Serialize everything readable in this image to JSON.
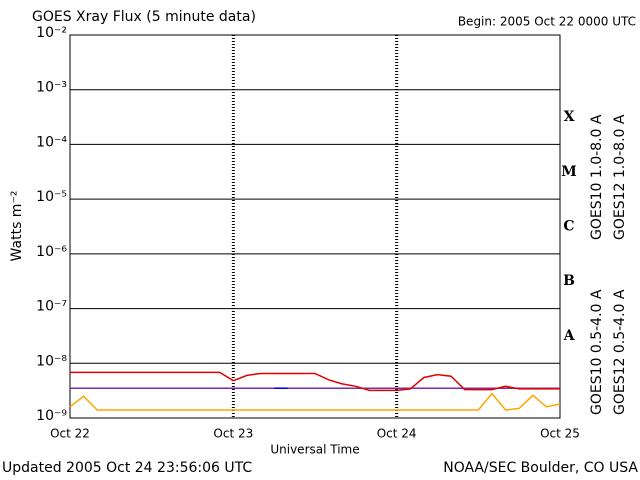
{
  "chart_data": {
    "type": "line",
    "title": "GOES Xray Flux (5 minute data)",
    "subtitle": "Begin:  2005 Oct 22 0000 UTC",
    "x_label": "Universal Time",
    "y_label": "Watts m⁻²",
    "footer_left": "Updated 2005 Oct 24 23:56:06 UTC",
    "footer_right": "NOAA/SEC Boulder, CO USA",
    "flare_classes": [
      "A",
      "B",
      "C",
      "M",
      "X"
    ],
    "log_scale": true,
    "grid": true,
    "ylim": [
      1e-09,
      0.01
    ],
    "yticks": [
      {
        "value": 1e-09,
        "label": "10⁻⁹"
      },
      {
        "value": 1e-08,
        "label": "10⁻⁸"
      },
      {
        "value": 1e-07,
        "label": "10⁻⁷"
      },
      {
        "value": 1e-06,
        "label": "10⁻⁶"
      },
      {
        "value": 1e-05,
        "label": "10⁻⁵"
      },
      {
        "value": 0.0001,
        "label": "10⁻⁴"
      },
      {
        "value": 0.001,
        "label": "10⁻³"
      },
      {
        "value": 0.01,
        "label": "10⁻²"
      }
    ],
    "xlim": [
      "2005-10-22T00:00",
      "2005-10-25T00:00"
    ],
    "xticks": [
      {
        "value": "2005-10-22T00:00",
        "label": "Oct 22"
      },
      {
        "value": "2005-10-23T00:00",
        "label": "Oct 23"
      },
      {
        "value": "2005-10-24T00:00",
        "label": "Oct 24"
      },
      {
        "value": "2005-10-25T00:00",
        "label": "Oct 25"
      }
    ],
    "x": [
      "2005-10-22T00:00",
      "2005-10-22T02:00",
      "2005-10-22T04:00",
      "2005-10-22T06:00",
      "2005-10-22T08:00",
      "2005-10-22T10:00",
      "2005-10-22T12:00",
      "2005-10-22T14:00",
      "2005-10-22T16:00",
      "2005-10-22T18:00",
      "2005-10-22T20:00",
      "2005-10-22T22:00",
      "2005-10-23T00:00",
      "2005-10-23T02:00",
      "2005-10-23T04:00",
      "2005-10-23T06:00",
      "2005-10-23T08:00",
      "2005-10-23T10:00",
      "2005-10-23T12:00",
      "2005-10-23T14:00",
      "2005-10-23T16:00",
      "2005-10-23T18:00",
      "2005-10-23T20:00",
      "2005-10-23T22:00",
      "2005-10-24T00:00",
      "2005-10-24T02:00",
      "2005-10-24T04:00",
      "2005-10-24T06:00",
      "2005-10-24T08:00",
      "2005-10-24T10:00",
      "2005-10-24T12:00",
      "2005-10-24T14:00",
      "2005-10-24T16:00",
      "2005-10-24T18:00",
      "2005-10-24T20:00",
      "2005-10-24T22:00",
      "2005-10-25T00:00"
    ],
    "series": [
      {
        "name": "GOES10 1.0-8.0 A",
        "color": "#7a2ea8",
        "values": [
          3.5e-09,
          3.5e-09,
          3.5e-09,
          3.5e-09,
          3.5e-09,
          3.5e-09,
          3.5e-09,
          3.5e-09,
          3.5e-09,
          3.5e-09,
          3.5e-09,
          3.5e-09,
          3.5e-09,
          3.5e-09,
          3.5e-09,
          3.5e-09,
          3.5e-09,
          3.5e-09,
          3.5e-09,
          3.5e-09,
          3.5e-09,
          3.5e-09,
          3.5e-09,
          3.5e-09,
          3.5e-09,
          3.5e-09,
          3.5e-09,
          3.5e-09,
          3.5e-09,
          3.5e-09,
          3.5e-09,
          3.5e-09,
          3.5e-09,
          3.5e-09,
          3.5e-09,
          3.5e-09,
          3.5e-09
        ]
      },
      {
        "name": "GOES12 1.0-8.0 A",
        "color": "#e00000",
        "values": [
          6.8e-09,
          6.8e-09,
          6.8e-09,
          6.8e-09,
          6.8e-09,
          6.8e-09,
          6.8e-09,
          6.8e-09,
          6.8e-09,
          6.8e-09,
          6.8e-09,
          6.8e-09,
          4.8e-09,
          6e-09,
          6.5e-09,
          6.5e-09,
          6.5e-09,
          6.5e-09,
          6.5e-09,
          5e-09,
          4.2e-09,
          3.8e-09,
          3.2e-09,
          3.2e-09,
          3.2e-09,
          3.4e-09,
          5.5e-09,
          6.2e-09,
          5.8e-09,
          3.3e-09,
          3.3e-09,
          3.3e-09,
          3.8e-09,
          3.4e-09,
          3.4e-09,
          3.4e-09,
          3.4e-09
        ]
      },
      {
        "name": "GOES10 0.5-4.0 A",
        "color": "#ffa500",
        "values": [
          1.6e-09,
          2.5e-09,
          1.4e-09,
          1.4e-09,
          1.4e-09,
          1.4e-09,
          1.4e-09,
          1.4e-09,
          1.4e-09,
          1.4e-09,
          1.4e-09,
          1.4e-09,
          1.4e-09,
          1.4e-09,
          1.4e-09,
          1.4e-09,
          1.4e-09,
          1.4e-09,
          1.4e-09,
          1.4e-09,
          1.4e-09,
          1.4e-09,
          1.4e-09,
          1.4e-09,
          1.4e-09,
          1.4e-09,
          1.4e-09,
          1.4e-09,
          1.4e-09,
          1.4e-09,
          1.4e-09,
          2.8e-09,
          1.4e-09,
          1.5e-09,
          2.6e-09,
          1.6e-09,
          1.8e-09
        ]
      },
      {
        "name": "GOES12 0.5-4.0 A",
        "color": "#0000e0",
        "values": [
          null,
          null,
          null,
          null,
          null,
          null,
          null,
          null,
          null,
          null,
          null,
          null,
          null,
          null,
          null,
          3.5e-09,
          3.5e-09,
          null,
          null,
          null,
          null,
          null,
          null,
          null,
          null,
          null,
          null,
          null,
          null,
          null,
          null,
          null,
          null,
          null,
          null,
          null,
          null
        ]
      }
    ]
  }
}
